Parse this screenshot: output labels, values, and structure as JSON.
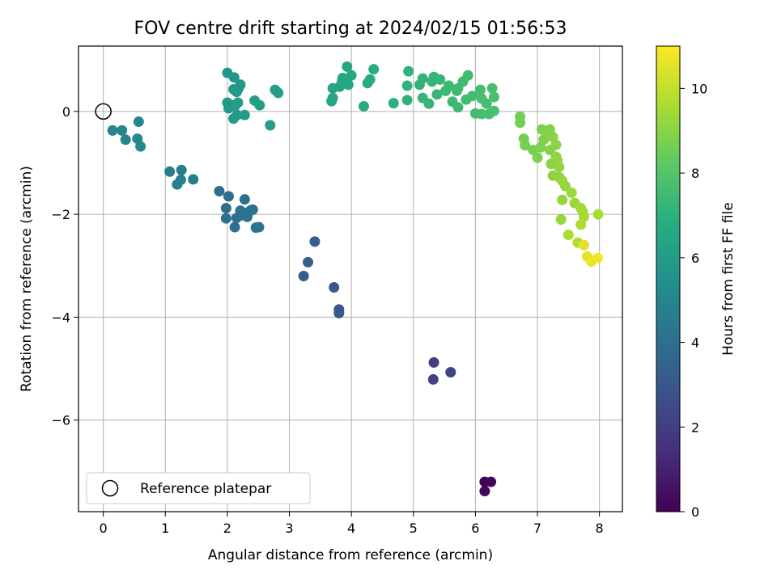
{
  "chart_data": {
    "type": "scatter",
    "title": "FOV centre drift starting at 2024/02/15 01:56:53",
    "xlabel": "Angular distance from reference (arcmin)",
    "ylabel": "Rotation from reference (arcmin)",
    "xlim": [
      -0.4,
      8.37
    ],
    "ylim": [
      -7.78,
      1.27
    ],
    "xticks": [
      0,
      1,
      2,
      3,
      4,
      5,
      6,
      7,
      8
    ],
    "yticks": [
      -6,
      -4,
      -2,
      0
    ],
    "ytick_labels": [
      "−6",
      "−4",
      "−2",
      "0"
    ],
    "grid": true,
    "colormap": "viridis",
    "colorbar": {
      "label": "Hours from first FF file",
      "range": [
        0,
        11
      ],
      "ticks": [
        0,
        2,
        4,
        6,
        8,
        10
      ]
    },
    "legend": {
      "position": "lower-left",
      "entries": [
        {
          "label": "Reference platepar",
          "marker": "open-circle"
        }
      ]
    },
    "reference_point": {
      "x": 0,
      "y": 0
    },
    "series": [
      {
        "points": [
          {
            "x": 6.15,
            "y": -7.2,
            "c": 0.0
          },
          {
            "x": 6.25,
            "y": -7.2,
            "c": 0.1
          },
          {
            "x": 6.15,
            "y": -7.38,
            "c": 0.2
          },
          {
            "x": 5.33,
            "y": -4.88,
            "c": 2.0
          },
          {
            "x": 5.32,
            "y": -5.21,
            "c": 2.1
          },
          {
            "x": 5.6,
            "y": -5.07,
            "c": 2.2
          },
          {
            "x": 3.8,
            "y": -3.85,
            "c": 3.0
          },
          {
            "x": 3.8,
            "y": -3.92,
            "c": 3.05
          },
          {
            "x": 3.72,
            "y": -3.42,
            "c": 3.1
          },
          {
            "x": 3.23,
            "y": -3.2,
            "c": 3.2
          },
          {
            "x": 3.3,
            "y": -2.93,
            "c": 3.25
          },
          {
            "x": 3.41,
            "y": -2.53,
            "c": 3.3
          },
          {
            "x": 1.87,
            "y": -1.55,
            "c": 3.9
          },
          {
            "x": 2.02,
            "y": -1.65,
            "c": 3.9
          },
          {
            "x": 1.98,
            "y": -1.88,
            "c": 3.95
          },
          {
            "x": 1.98,
            "y": -2.08,
            "c": 3.95
          },
          {
            "x": 2.12,
            "y": -2.25,
            "c": 4.0
          },
          {
            "x": 2.15,
            "y": -2.07,
            "c": 4.0
          },
          {
            "x": 2.21,
            "y": -1.93,
            "c": 4.0
          },
          {
            "x": 2.22,
            "y": -2.02,
            "c": 4.05
          },
          {
            "x": 2.28,
            "y": -1.71,
            "c": 4.05
          },
          {
            "x": 2.35,
            "y": -1.95,
            "c": 4.1
          },
          {
            "x": 2.38,
            "y": -1.92,
            "c": 4.1
          },
          {
            "x": 2.41,
            "y": -1.91,
            "c": 4.1
          },
          {
            "x": 2.46,
            "y": -2.26,
            "c": 4.15
          },
          {
            "x": 2.51,
            "y": -2.25,
            "c": 4.15
          },
          {
            "x": 2.32,
            "y": -2.05,
            "c": 4.1
          },
          {
            "x": 1.07,
            "y": -1.17,
            "c": 4.6
          },
          {
            "x": 1.26,
            "y": -1.14,
            "c": 4.6
          },
          {
            "x": 1.19,
            "y": -1.42,
            "c": 4.65
          },
          {
            "x": 1.25,
            "y": -1.33,
            "c": 4.65
          },
          {
            "x": 1.45,
            "y": -1.32,
            "c": 4.7
          },
          {
            "x": 0.15,
            "y": -0.37,
            "c": 5.0
          },
          {
            "x": 0.3,
            "y": -0.37,
            "c": 5.0
          },
          {
            "x": 0.36,
            "y": -0.55,
            "c": 5.05
          },
          {
            "x": 0.57,
            "y": -0.2,
            "c": 5.1
          },
          {
            "x": 0.55,
            "y": -0.53,
            "c": 5.1
          },
          {
            "x": 0.6,
            "y": -0.68,
            "c": 5.15
          },
          {
            "x": 2.0,
            "y": 0.75,
            "c": 5.8
          },
          {
            "x": 2.11,
            "y": 0.66,
            "c": 5.8
          },
          {
            "x": 2.18,
            "y": 0.45,
            "c": 5.85
          },
          {
            "x": 2.15,
            "y": 0.38,
            "c": 5.85
          },
          {
            "x": 2.21,
            "y": 0.52,
            "c": 5.85
          },
          {
            "x": 2.1,
            "y": 0.43,
            "c": 5.9
          },
          {
            "x": 2.0,
            "y": 0.17,
            "c": 5.9
          },
          {
            "x": 2.02,
            "y": 0.06,
            "c": 5.9
          },
          {
            "x": 2.08,
            "y": 0.12,
            "c": 5.95
          },
          {
            "x": 2.1,
            "y": -0.14,
            "c": 5.95
          },
          {
            "x": 2.16,
            "y": -0.07,
            "c": 5.95
          },
          {
            "x": 2.17,
            "y": 0.17,
            "c": 6.0
          },
          {
            "x": 2.12,
            "y": 0.1,
            "c": 6.0
          },
          {
            "x": 2.28,
            "y": -0.07,
            "c": 6.0
          },
          {
            "x": 2.44,
            "y": 0.21,
            "c": 6.05
          },
          {
            "x": 2.52,
            "y": 0.12,
            "c": 6.05
          },
          {
            "x": 2.69,
            "y": -0.27,
            "c": 6.1
          },
          {
            "x": 2.77,
            "y": 0.42,
            "c": 6.1
          },
          {
            "x": 2.82,
            "y": 0.36,
            "c": 6.1
          },
          {
            "x": 3.68,
            "y": 0.2,
            "c": 6.4
          },
          {
            "x": 3.7,
            "y": 0.26,
            "c": 6.4
          },
          {
            "x": 3.7,
            "y": 0.45,
            "c": 6.45
          },
          {
            "x": 3.81,
            "y": 0.48,
            "c": 6.45
          },
          {
            "x": 3.85,
            "y": 0.59,
            "c": 6.5
          },
          {
            "x": 3.86,
            "y": 0.65,
            "c": 6.5
          },
          {
            "x": 3.93,
            "y": 0.87,
            "c": 6.55
          },
          {
            "x": 3.95,
            "y": 0.52,
            "c": 6.55
          },
          {
            "x": 4.0,
            "y": 0.7,
            "c": 6.6
          },
          {
            "x": 4.2,
            "y": 0.1,
            "c": 6.7
          },
          {
            "x": 4.26,
            "y": 0.55,
            "c": 6.75
          },
          {
            "x": 4.3,
            "y": 0.62,
            "c": 6.75
          },
          {
            "x": 4.36,
            "y": 0.82,
            "c": 6.8
          },
          {
            "x": 4.68,
            "y": 0.16,
            "c": 7.0
          },
          {
            "x": 4.9,
            "y": 0.22,
            "c": 7.05
          },
          {
            "x": 4.9,
            "y": 0.5,
            "c": 7.1
          },
          {
            "x": 4.92,
            "y": 0.78,
            "c": 7.1
          },
          {
            "x": 5.1,
            "y": 0.52,
            "c": 7.15
          },
          {
            "x": 5.15,
            "y": 0.64,
            "c": 7.15
          },
          {
            "x": 5.15,
            "y": 0.26,
            "c": 7.2
          },
          {
            "x": 5.25,
            "y": 0.15,
            "c": 7.2
          },
          {
            "x": 5.3,
            "y": 0.58,
            "c": 7.25
          },
          {
            "x": 5.33,
            "y": 0.67,
            "c": 7.25
          },
          {
            "x": 5.38,
            "y": 0.33,
            "c": 7.3
          },
          {
            "x": 5.43,
            "y": 0.62,
            "c": 7.3
          },
          {
            "x": 5.52,
            "y": 0.4,
            "c": 7.35
          },
          {
            "x": 5.57,
            "y": 0.5,
            "c": 7.35
          },
          {
            "x": 5.63,
            "y": 0.19,
            "c": 7.4
          },
          {
            "x": 5.7,
            "y": 0.4,
            "c": 7.4
          },
          {
            "x": 5.72,
            "y": 0.45,
            "c": 7.45
          },
          {
            "x": 5.72,
            "y": 0.08,
            "c": 7.45
          },
          {
            "x": 5.8,
            "y": 0.58,
            "c": 7.5
          },
          {
            "x": 5.85,
            "y": 0.23,
            "c": 7.5
          },
          {
            "x": 5.88,
            "y": 0.7,
            "c": 7.55
          },
          {
            "x": 5.95,
            "y": 0.3,
            "c": 7.55
          },
          {
            "x": 6.0,
            "y": -0.04,
            "c": 7.6
          },
          {
            "x": 6.08,
            "y": 0.42,
            "c": 7.6
          },
          {
            "x": 6.1,
            "y": -0.05,
            "c": 7.65
          },
          {
            "x": 6.18,
            "y": 0.15,
            "c": 7.65
          },
          {
            "x": 6.22,
            "y": -0.05,
            "c": 7.7
          },
          {
            "x": 6.27,
            "y": 0.45,
            "c": 7.7
          },
          {
            "x": 6.3,
            "y": 0.28,
            "c": 7.75
          },
          {
            "x": 6.3,
            "y": 0.01,
            "c": 7.75
          },
          {
            "x": 6.1,
            "y": 0.25,
            "c": 7.7
          },
          {
            "x": 6.72,
            "y": -0.1,
            "c": 8.6
          },
          {
            "x": 6.72,
            "y": -0.22,
            "c": 8.6
          },
          {
            "x": 6.78,
            "y": -0.53,
            "c": 8.65
          },
          {
            "x": 6.8,
            "y": -0.66,
            "c": 8.65
          },
          {
            "x": 6.93,
            "y": -0.75,
            "c": 8.7
          },
          {
            "x": 7.0,
            "y": -0.9,
            "c": 8.75
          },
          {
            "x": 7.05,
            "y": -0.7,
            "c": 8.8
          },
          {
            "x": 7.07,
            "y": -0.35,
            "c": 8.8
          },
          {
            "x": 7.1,
            "y": -0.55,
            "c": 8.85
          },
          {
            "x": 7.15,
            "y": -0.45,
            "c": 8.9
          },
          {
            "x": 7.2,
            "y": -0.35,
            "c": 8.9
          },
          {
            "x": 7.2,
            "y": -0.75,
            "c": 8.95
          },
          {
            "x": 7.25,
            "y": -0.5,
            "c": 9.0
          },
          {
            "x": 7.22,
            "y": -1.02,
            "c": 9.0
          },
          {
            "x": 7.25,
            "y": -1.25,
            "c": 9.05
          },
          {
            "x": 7.3,
            "y": -0.65,
            "c": 9.05
          },
          {
            "x": 7.3,
            "y": -0.88,
            "c": 9.1
          },
          {
            "x": 7.32,
            "y": -0.95,
            "c": 9.1
          },
          {
            "x": 7.35,
            "y": -1.08,
            "c": 9.15
          },
          {
            "x": 7.35,
            "y": -1.28,
            "c": 9.15
          },
          {
            "x": 7.4,
            "y": -1.35,
            "c": 9.2
          },
          {
            "x": 7.4,
            "y": -1.72,
            "c": 9.2
          },
          {
            "x": 7.45,
            "y": -1.45,
            "c": 9.25
          },
          {
            "x": 7.38,
            "y": -2.1,
            "c": 9.25
          },
          {
            "x": 7.55,
            "y": -1.58,
            "c": 9.3
          },
          {
            "x": 7.6,
            "y": -1.78,
            "c": 9.35
          },
          {
            "x": 7.7,
            "y": -1.88,
            "c": 9.4
          },
          {
            "x": 7.73,
            "y": -1.95,
            "c": 9.45
          },
          {
            "x": 7.75,
            "y": -2.05,
            "c": 9.5
          },
          {
            "x": 7.98,
            "y": -2.0,
            "c": 9.55
          },
          {
            "x": 7.5,
            "y": -2.4,
            "c": 9.6
          },
          {
            "x": 7.7,
            "y": -2.2,
            "c": 9.65
          },
          {
            "x": 7.65,
            "y": -2.55,
            "c": 9.7
          },
          {
            "x": 7.75,
            "y": -2.6,
            "c": 10.5
          },
          {
            "x": 7.8,
            "y": -2.82,
            "c": 10.6
          },
          {
            "x": 7.87,
            "y": -2.92,
            "c": 10.7
          },
          {
            "x": 7.97,
            "y": -2.85,
            "c": 10.8
          }
        ]
      }
    ]
  }
}
